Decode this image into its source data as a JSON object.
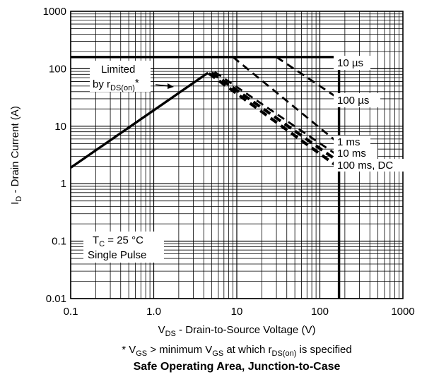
{
  "chart_data": {
    "type": "line",
    "title": "Safe Operating Area, Junction-to-Case",
    "xscale": "log",
    "yscale": "log",
    "xlim": [
      0.1,
      1000
    ],
    "ylim": [
      0.01,
      1000
    ],
    "grid": true,
    "x_tick_labels": [
      "0.1",
      "1.0",
      "10",
      "100",
      "1000"
    ],
    "y_tick_labels": [
      "0.01",
      "0.1",
      "1",
      "10",
      "100",
      "1000"
    ],
    "xlabel": {
      "main": "V",
      "sub": "DS",
      "rest": " - Drain-to-Source Voltage (V)"
    },
    "ylabel": {
      "main": "I",
      "sub": "D",
      "rest": " - Drain Current (A)"
    },
    "footnote": {
      "p1": "* V",
      "s1": "GS",
      "p2": " > minimum V",
      "s2": "GS",
      "p3": " at which r",
      "s3": "DS(on)",
      "p4": " is specified"
    },
    "annotations": {
      "limited_line1": "Limited",
      "limited_line2_main": "by r",
      "limited_line2_sub": "DS(on)",
      "limited_line2_tail": "*",
      "tc_main": "T",
      "tc_sub": "C",
      "tc_rest": " = 25 °C",
      "single_pulse": "Single Pulse"
    },
    "series": [
      {
        "name": "Limited by rDS(on)*",
        "style": "solid",
        "x": [
          0.1,
          4.5,
          4.5
        ],
        "y": [
          1.9,
          85,
          85
        ]
      },
      {
        "name": "10 µs",
        "style": "dashed",
        "x": [
          30,
          170
        ],
        "y": [
          160,
          30
        ]
      },
      {
        "name": "100 µs",
        "style": "dashed",
        "x": [
          9,
          170
        ],
        "y": [
          160,
          5
        ]
      },
      {
        "name": "1 ms",
        "style": "dashed",
        "x": [
          5.4,
          170
        ],
        "y": [
          88,
          3
        ]
      },
      {
        "name": "10 ms",
        "style": "dashed",
        "x": [
          5.0,
          170
        ],
        "y": [
          85,
          2.4
        ]
      },
      {
        "name": "100 ms, DC",
        "style": "dashed",
        "x": [
          4.6,
          170
        ],
        "y": [
          83,
          1.9
        ]
      },
      {
        "name": "Current limit",
        "style": "solid",
        "x": [
          0.1,
          170
        ],
        "y": [
          160,
          160
        ]
      },
      {
        "name": "Voltage limit",
        "style": "solid",
        "x": [
          170,
          170
        ],
        "y": [
          160,
          0.01
        ]
      }
    ],
    "curve_labels": [
      "10 µs",
      "100 µs",
      "1 ms",
      "10 ms",
      "100 ms, DC"
    ]
  }
}
